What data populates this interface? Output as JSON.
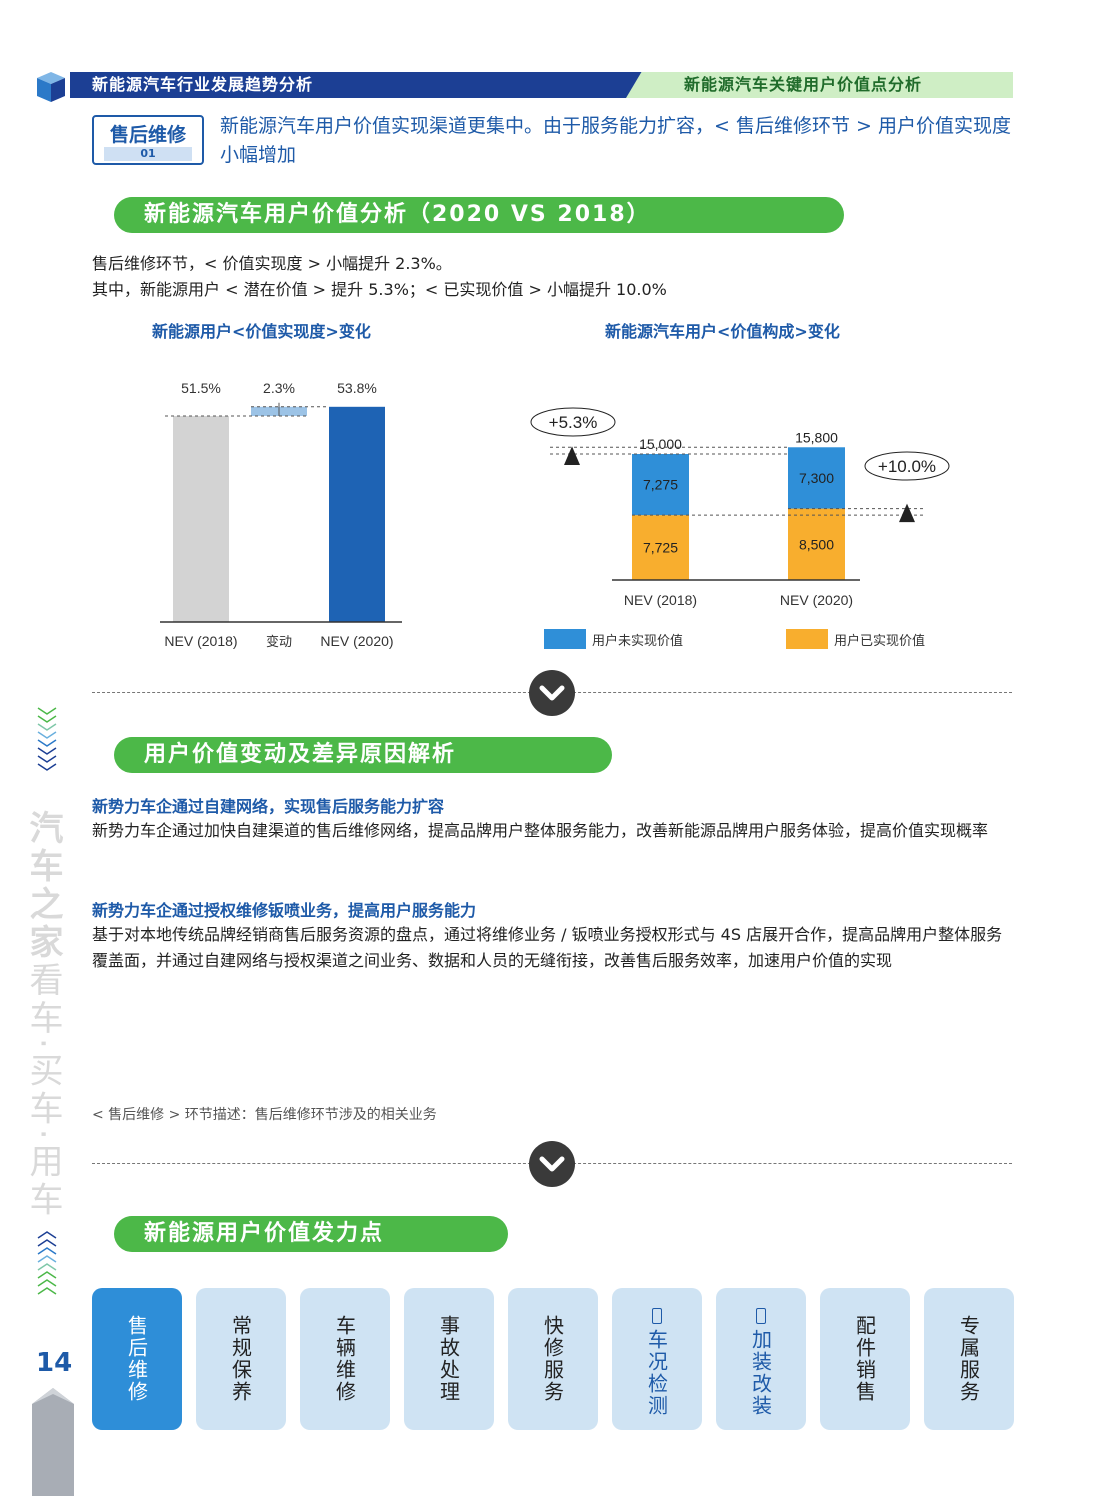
{
  "header": {
    "left_title": "新能源汽车行业发展趋势分析",
    "right_title": "新能源汽车关键用户价值点分析",
    "colors": {
      "navy": "#1c3f94",
      "green": "#4cb848",
      "orange": "#f5b52a",
      "light_green": "#cfeec5"
    }
  },
  "badge": {
    "title": "售后维修",
    "number": "01"
  },
  "intro": "新能源汽车用户价值实现渠道更集中。由于服务能力扩容，< 售后维修环节 > 用户价值实现度小幅增加",
  "section1": {
    "title": "新能源汽车用户价值分析（2020 VS 2018）",
    "line1": "售后维修环节，< 价值实现度 > 小幅提升 2.3%。",
    "line2": "其中，新能源用户 < 潜在价值 > 提升 5.3%；< 已实现价值 > 小幅提升 10.0%"
  },
  "chart_data": [
    {
      "type": "bar",
      "title": "新能源用户<价值实现度>变化",
      "categories": [
        "NEV (2018)",
        "变动",
        "NEV (2020)"
      ],
      "values": [
        51.5,
        2.3,
        53.8
      ],
      "value_labels": [
        "51.5%",
        "2.3%",
        "53.8%"
      ],
      "waterfall": true,
      "colors": [
        "#d3d3d3",
        "#9cc3e6",
        "#1e63b4"
      ]
    },
    {
      "type": "bar",
      "stacked": true,
      "title": "新能源汽车用户<价值构成>变化",
      "categories": [
        "NEV (2018)",
        "NEV (2020)"
      ],
      "series": [
        {
          "name": "用户已实现价值",
          "values": [
            7725,
            8500
          ],
          "labels": [
            "7,725",
            "8,500"
          ],
          "color": "#f8ae2e"
        },
        {
          "name": "用户未实现价值",
          "values": [
            7275,
            7300
          ],
          "labels": [
            "7,275",
            "7,300"
          ],
          "color": "#2f8fd8"
        }
      ],
      "totals": [
        15000,
        15800
      ],
      "total_labels": [
        "15,000",
        "15,800"
      ],
      "annotations": [
        "+5.3%",
        "+10.0%"
      ]
    }
  ],
  "section2": {
    "title": "用户价值变动及差异原因解析",
    "h1": "新势力车企通过自建网络，实现售后服务能力扩容",
    "p1": "新势力车企通过加快自建渠道的售后维修网络，提高品牌用户整体服务能力，改善新能源品牌用户服务体验，提高价值实现概率",
    "h2": "新势力车企通过授权维修钣喷业务，提高用户服务能力",
    "p2": "基于对本地传统品牌经销商售后服务资源的盘点，通过将维修业务 / 钣喷业务授权形式与 4S 店展开合作，提高品牌用户整体服务覆盖面，并通过自建网络与授权渠道之间业务、数据和人员的无缝衔接，改善售后服务效率，加速用户价值的实现"
  },
  "footnote": "< 售后维修 > 环节描述：售后维修环节涉及的相关业务",
  "section3": {
    "title": "新能源用户价值发力点"
  },
  "tabs": [
    "售后维修",
    "常规保养",
    "车辆维修",
    "事故处理",
    "快修服务",
    "车况检测",
    "加装改装",
    "配件销售",
    "专属服务"
  ],
  "sidebar": {
    "brand": "汽车之家",
    "slogan": "看车·买车·用车",
    "page_number": "14"
  }
}
